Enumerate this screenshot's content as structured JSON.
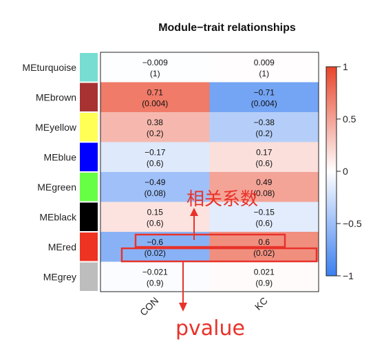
{
  "chart_data": {
    "type": "heatmap",
    "title": "Module−trait relationships",
    "rows": [
      "MEturquoise",
      "MEbrown",
      "MEyellow",
      "MEblue",
      "MEgreen",
      "MEblack",
      "MEred",
      "MEgrey"
    ],
    "row_colors": [
      "#77ddd2",
      "#a83232",
      "#ffff55",
      "#0000ff",
      "#66ff44",
      "#000000",
      "#ee3322",
      "#bdbdbd"
    ],
    "columns": [
      "CON",
      "KC"
    ],
    "correlation": [
      [
        -0.009,
        0.009
      ],
      [
        0.71,
        -0.71
      ],
      [
        0.38,
        -0.38
      ],
      [
        -0.17,
        0.17
      ],
      [
        -0.49,
        0.49
      ],
      [
        0.15,
        -0.15
      ],
      [
        -0.6,
        0.6
      ],
      [
        -0.021,
        0.021
      ]
    ],
    "cell_labels": [
      [
        [
          "−0.009",
          "(1)"
        ],
        [
          "0.009",
          "(1)"
        ]
      ],
      [
        [
          "0.71",
          "(0.004)"
        ],
        [
          "−0.71",
          "(0.004)"
        ]
      ],
      [
        [
          "0.38",
          "(0.2)"
        ],
        [
          "−0.38",
          "(0.2)"
        ]
      ],
      [
        [
          "−0.17",
          "(0.6)"
        ],
        [
          "0.17",
          "(0.6)"
        ]
      ],
      [
        [
          "−0.49",
          "(0.08)"
        ],
        [
          "0.49",
          "(0.08)"
        ]
      ],
      [
        [
          "0.15",
          "(0.6)"
        ],
        [
          "−0.15",
          "(0.6)"
        ]
      ],
      [
        [
          "−0.6",
          "(0.02)"
        ],
        [
          "0.6",
          "(0.02)"
        ]
      ],
      [
        [
          "−0.021",
          "(0.9)"
        ],
        [
          "0.021",
          "(0.9)"
        ]
      ]
    ],
    "color_scale": {
      "range": [
        -1,
        1
      ],
      "low": "#3b7ff0",
      "mid": "#ffffff",
      "high": "#e8452a",
      "ticks": [
        1,
        0.5,
        0,
        -0.5,
        -1
      ],
      "tick_labels": [
        "1",
        "0.5",
        "0",
        "−0.5",
        "−1"
      ]
    }
  },
  "annotations": {
    "corr_label": "相关系数",
    "pvalue_label": "pvalue",
    "color": "#e8322a"
  }
}
